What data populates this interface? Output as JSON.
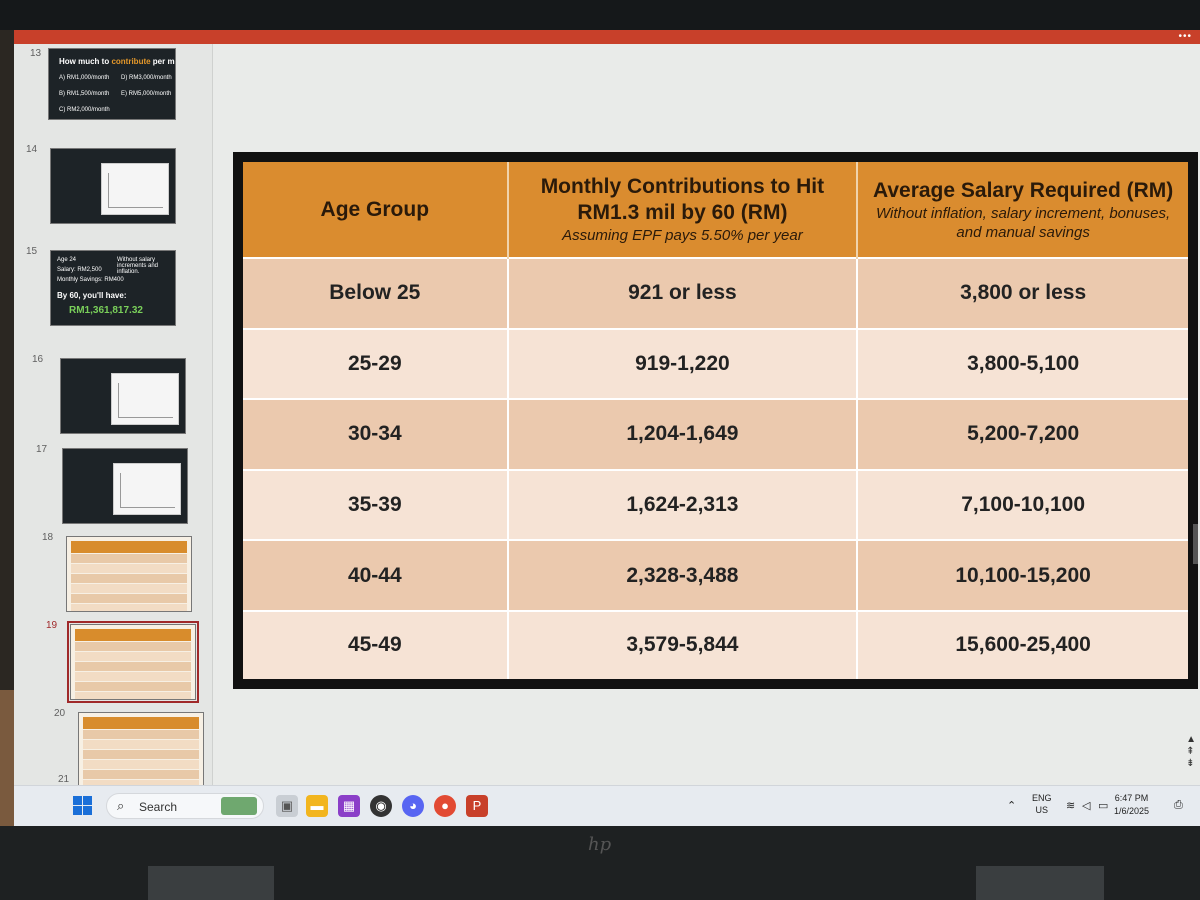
{
  "thumbnails": [
    {
      "num": "13",
      "title_pre": "How much to ",
      "title_accent": "contribute",
      "title_post": " per month?",
      "options": [
        "A) RM1,000/month",
        "D) RM3,000/month",
        "B) RM1,500/month",
        "E) RM5,000/month",
        "C) RM2,000/month"
      ]
    },
    {
      "num": "14"
    },
    {
      "num": "15",
      "bullets": [
        "Age 24",
        "Salary: RM2,500",
        "Monthly Savings: RM400"
      ],
      "note": "Without salary increments and inflation.",
      "line": "By 60, you'll have:",
      "amount": "RM1,361,817.32"
    },
    {
      "num": "16"
    },
    {
      "num": "17"
    },
    {
      "num": "18"
    },
    {
      "num": "19"
    },
    {
      "num": "20"
    },
    {
      "num": "21"
    }
  ],
  "table": {
    "headers": [
      {
        "main": "Age Group",
        "sub": ""
      },
      {
        "main": "Monthly Contributions to Hit RM1.3 mil by 60 (RM)",
        "sub": "Assuming EPF pays 5.50% per year"
      },
      {
        "main": "Average Salary Required (RM)",
        "sub": "Without inflation, salary increment, bonuses, and manual savings"
      }
    ],
    "rows": [
      [
        "Below 25",
        "921 or less",
        "3,800 or less"
      ],
      [
        "25-29",
        "919-1,220",
        "3,800-5,100"
      ],
      [
        "30-34",
        "1,204-1,649",
        "5,200-7,200"
      ],
      [
        "35-39",
        "1,624-2,313",
        "7,100-10,100"
      ],
      [
        "40-44",
        "2,328-3,488",
        "10,100-15,200"
      ],
      [
        "45-49",
        "3,579-5,844",
        "15,600-25,400"
      ]
    ]
  },
  "taskbar": {
    "search_label": "Search",
    "lang_top": "ENG",
    "lang_bottom": "US",
    "time": "6:47 PM",
    "date": "1/6/2025"
  },
  "colors": {
    "header": "#da8c2f",
    "row_dark": "#ebc9ae",
    "row_light": "#f6e3d5",
    "titlebar": "#c8402a"
  }
}
